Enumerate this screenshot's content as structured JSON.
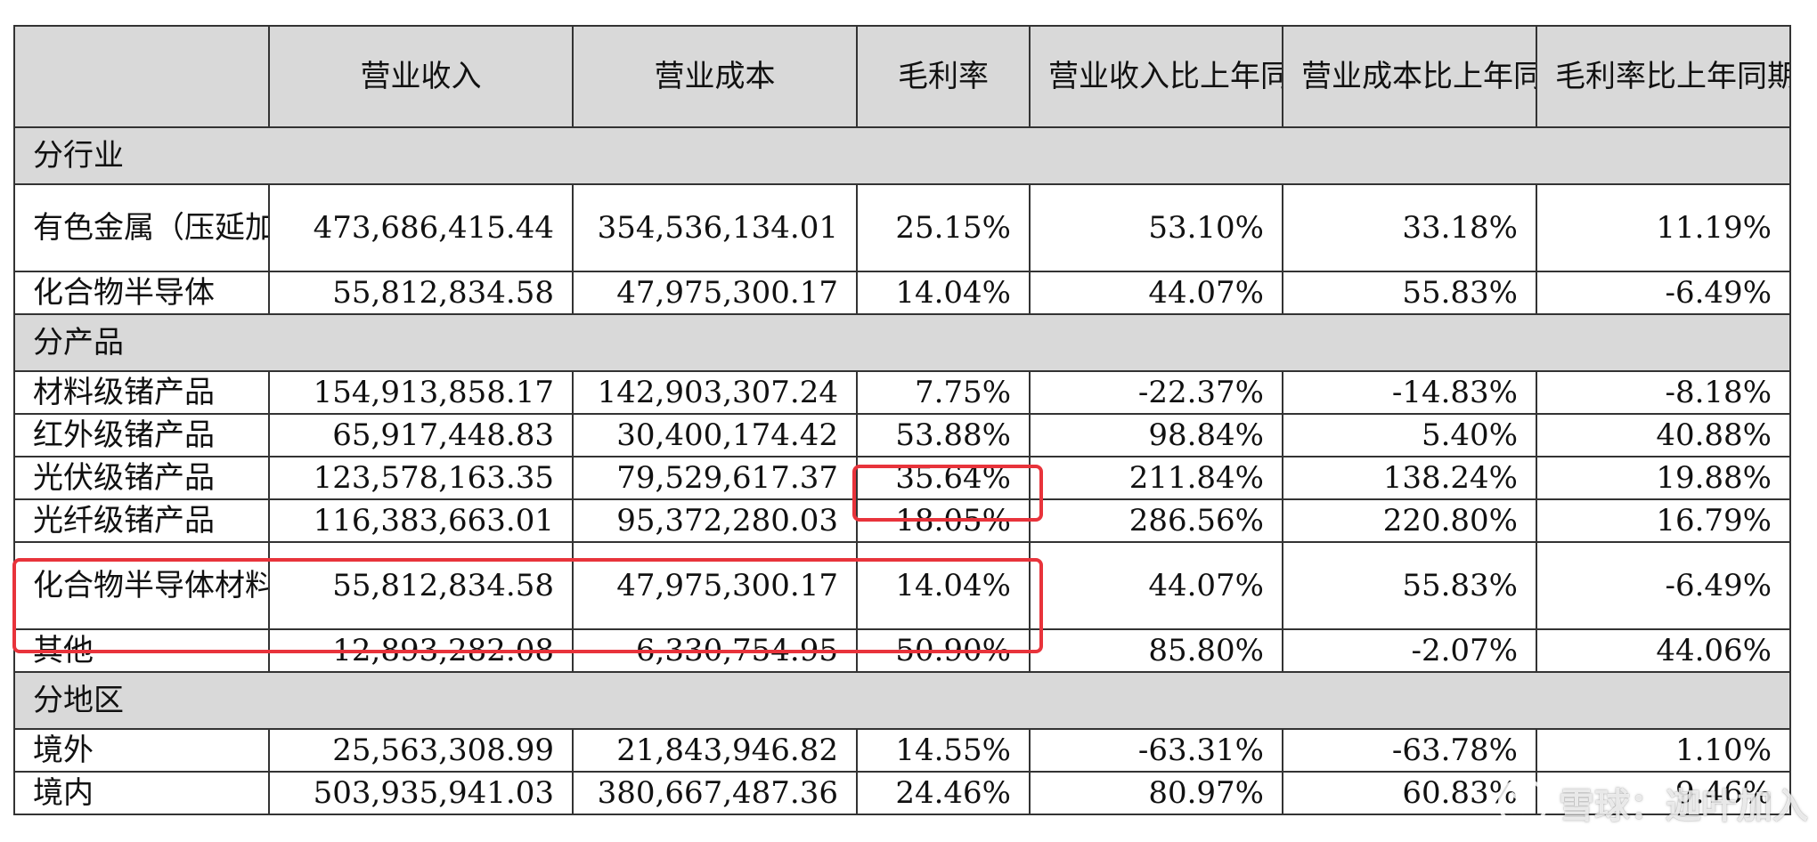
{
  "table": {
    "headers": [
      "",
      "营业收入",
      "营业成本",
      "毛利率",
      "营业收入比上年同期增减",
      "营业成本比上年同期增减",
      "毛利率比上年同期增减"
    ],
    "sections": [
      {
        "title": "分行业",
        "rows": [
          {
            "label": "有色金属（压延加工业）",
            "values": [
              "473,686,415.44",
              "354,536,134.01",
              "25.15%",
              "53.10%",
              "33.18%",
              "11.19%"
            ],
            "tall": true
          },
          {
            "label": "化合物半导体",
            "values": [
              "55,812,834.58",
              "47,975,300.17",
              "14.04%",
              "44.07%",
              "55.83%",
              "-6.49%"
            ]
          }
        ]
      },
      {
        "title": "分产品",
        "rows": [
          {
            "label": "材料级锗产品",
            "values": [
              "154,913,858.17",
              "142,903,307.24",
              "7.75%",
              "-22.37%",
              "-14.83%",
              "-8.18%"
            ]
          },
          {
            "label": "红外级锗产品",
            "values": [
              "65,917,448.83",
              "30,400,174.42",
              "53.88%",
              "98.84%",
              "5.40%",
              "40.88%"
            ]
          },
          {
            "label": "光伏级锗产品",
            "values": [
              "123,578,163.35",
              "79,529,617.37",
              "35.64%",
              "211.84%",
              "138.24%",
              "19.88%"
            ]
          },
          {
            "label": "光纤级锗产品",
            "values": [
              "116,383,663.01",
              "95,372,280.03",
              "18.05%",
              "286.56%",
              "220.80%",
              "16.79%"
            ]
          },
          {
            "label": "化合物半导体材料",
            "values": [
              "55,812,834.58",
              "47,975,300.17",
              "14.04%",
              "44.07%",
              "55.83%",
              "-6.49%"
            ],
            "tall": true
          },
          {
            "label": "其他",
            "values": [
              "12,893,282.08",
              "6,330,754.95",
              "50.90%",
              "85.80%",
              "-2.07%",
              "44.06%"
            ]
          }
        ]
      },
      {
        "title": "分地区",
        "rows": [
          {
            "label": "境外",
            "values": [
              "25,563,308.99",
              "21,843,946.82",
              "14.55%",
              "-63.31%",
              "-63.78%",
              "1.10%"
            ]
          },
          {
            "label": "境内",
            "values": [
              "503,935,941.03",
              "380,667,487.36",
              "24.46%",
              "80.97%",
              "60.83%",
              "9.46%"
            ]
          }
        ]
      }
    ]
  },
  "watermark": {
    "text": "雪球：迦叶加入"
  },
  "colors": {
    "header_bg": "#d9d9d9",
    "border": "#333333",
    "highlight": "#e8333b"
  }
}
